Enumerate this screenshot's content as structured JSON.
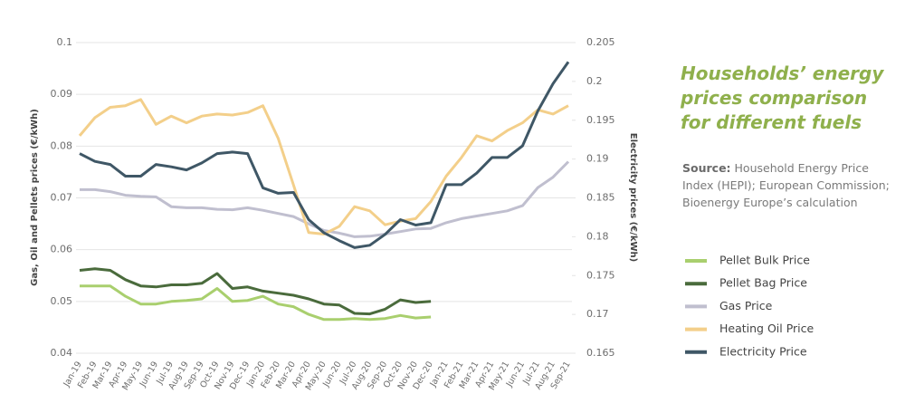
{
  "chart_data": {
    "type": "line",
    "title": "Households’ energy prices comparison for different fuels",
    "source_label": "Source:",
    "source": "Household Energy Price Index (HEPI); European Commission; Bioenergy Europe’s calculation",
    "ylabel": "Gas, Oil and Pellets prices (€/kWh)",
    "y2label": "Electricity prices (€/kWh)",
    "categories": [
      "Jan-19",
      "Feb-19",
      "Mar-19",
      "Apr-19",
      "May-19",
      "Jun-19",
      "Jul-19",
      "Aug-19",
      "Sep-19",
      "Oct-19",
      "Nov-19",
      "Dec-19",
      "Jan-20",
      "Feb-20",
      "Mar-20",
      "Apr-20",
      "May-20",
      "Jun-20",
      "Jul-20",
      "Aug-20",
      "Sep-20",
      "Oct-20",
      "Nov-20",
      "Dec-20",
      "Jan-21",
      "Feb-21",
      "Mar-21",
      "Apr-21",
      "May-21",
      "Jun-21",
      "Jul-21",
      "Aug-21",
      "Sep-21"
    ],
    "ylim": [
      0.04,
      0.1
    ],
    "yticks": [
      0.04,
      0.05,
      0.06,
      0.07,
      0.08,
      0.09,
      0.1
    ],
    "y2lim": [
      0.165,
      0.205
    ],
    "y2ticks": [
      0.165,
      0.17,
      0.175,
      0.18,
      0.185,
      0.19,
      0.195,
      0.2,
      0.205
    ],
    "grid": true,
    "series": [
      {
        "name": "Pellet Bulk Price",
        "color": "#a9cf6e",
        "values": [
          0.053,
          0.053,
          0.053,
          0.051,
          0.0495,
          0.0495,
          0.05,
          0.0502,
          0.0505,
          0.0525,
          0.05,
          0.0502,
          0.051,
          0.0495,
          0.049,
          0.0475,
          0.0465,
          0.0465,
          0.0467,
          0.0465,
          0.0467,
          0.0473,
          0.0468,
          0.047,
          null,
          null,
          null,
          null,
          null,
          null,
          null,
          null,
          null
        ]
      },
      {
        "name": "Pellet Bag Price",
        "color": "#4a6b3c",
        "values": [
          0.056,
          0.0563,
          0.056,
          0.0542,
          0.053,
          0.0528,
          0.0532,
          0.0532,
          0.0535,
          0.0554,
          0.0525,
          0.0528,
          0.052,
          0.0516,
          0.0512,
          0.0505,
          0.0495,
          0.0493,
          0.0477,
          0.0476,
          0.0485,
          0.0503,
          0.0498,
          0.05,
          null,
          null,
          null,
          null,
          null,
          null,
          null,
          null,
          null
        ]
      },
      {
        "name": "Gas Price",
        "color": "#c0bfcf",
        "values": [
          0.0716,
          0.0716,
          0.0712,
          0.0705,
          0.0703,
          0.0702,
          0.0683,
          0.0681,
          0.0681,
          0.0678,
          0.0677,
          0.0681,
          0.0676,
          0.067,
          0.0664,
          0.065,
          0.0637,
          0.0632,
          0.0625,
          0.0626,
          0.063,
          0.0635,
          0.064,
          0.0641,
          0.0652,
          0.066,
          0.0665,
          0.067,
          0.0675,
          0.0685,
          0.072,
          0.074,
          0.077
        ]
      },
      {
        "name": "Heating Oil Price",
        "color": "#f3cf8a",
        "values": [
          0.082,
          0.0855,
          0.0875,
          0.0878,
          0.089,
          0.0842,
          0.0858,
          0.0845,
          0.0858,
          0.0862,
          0.086,
          0.0865,
          0.0878,
          0.0815,
          0.0725,
          0.0633,
          0.063,
          0.0645,
          0.0683,
          0.0675,
          0.0648,
          0.0655,
          0.066,
          0.0693,
          0.0742,
          0.0778,
          0.082,
          0.081,
          0.083,
          0.0845,
          0.087,
          0.0862,
          0.0878
        ]
      },
      {
        "name": "Electricity Price",
        "color": "#3f5766",
        "axis": "y2",
        "values": [
          0.1907,
          0.1897,
          0.1893,
          0.1878,
          0.1878,
          0.1893,
          0.189,
          0.1886,
          0.1895,
          0.1907,
          0.1909,
          0.1907,
          0.1863,
          0.1856,
          0.1857,
          0.1822,
          0.1805,
          0.1795,
          0.1786,
          0.1789,
          0.1803,
          0.1822,
          0.1815,
          0.1818,
          0.1867,
          0.1867,
          0.1882,
          0.1902,
          0.1902,
          0.1917,
          0.1962,
          0.1997,
          0.2025
        ]
      }
    ]
  }
}
